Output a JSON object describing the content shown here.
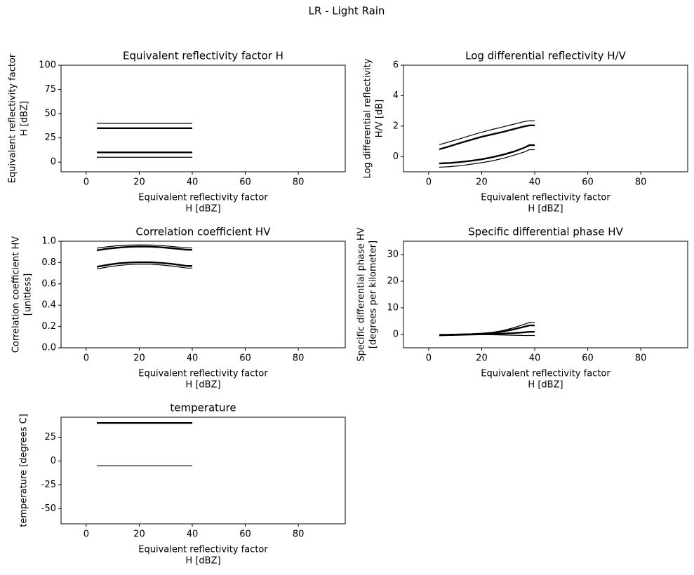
{
  "title": "LR - Light Rain",
  "chart_data": [
    {
      "type": "line",
      "title": "Equivalent reflectivity factor H",
      "xlabel": [
        "Equivalent reflectivity factor",
        "H [dBZ]"
      ],
      "ylabel": [
        "Equivalent reflectivity factor",
        "H [dBZ]"
      ],
      "x": [
        4,
        40
      ],
      "xlim": [
        -9.5,
        97.7
      ],
      "xticks": [
        0,
        20,
        40,
        60,
        80
      ],
      "ylim": [
        -10,
        100
      ],
      "yticks": [
        0,
        25,
        50,
        75,
        100
      ],
      "series": [
        {
          "color": "#000000",
          "width": 1.2,
          "values": [
            40,
            40
          ]
        },
        {
          "color": "#000000",
          "width": 2.4,
          "values": [
            35,
            35
          ]
        },
        {
          "color": "#000000",
          "width": 2.4,
          "values": [
            10,
            10
          ]
        },
        {
          "color": "#000000",
          "width": 1.2,
          "values": [
            5,
            5
          ]
        }
      ]
    },
    {
      "type": "line",
      "title": "Log differential reflectivity H/V",
      "xlabel": [
        "Equivalent reflectivity factor",
        "H [dBZ]"
      ],
      "ylabel": [
        "Log differential reflectivity",
        "H/V [dB]"
      ],
      "x": [
        4,
        8,
        12,
        16,
        20,
        24,
        28,
        32,
        36,
        38,
        40
      ],
      "xlim": [
        -9.5,
        97.7
      ],
      "xticks": [
        0,
        20,
        40,
        60,
        80
      ],
      "ylim": [
        -1,
        6
      ],
      "yticks": [
        0,
        2,
        4,
        6
      ],
      "series": [
        {
          "color": "#000000",
          "width": 1.2,
          "values": [
            0.78,
            0.98,
            1.18,
            1.4,
            1.6,
            1.78,
            1.95,
            2.12,
            2.3,
            2.35,
            2.35
          ]
        },
        {
          "color": "#000000",
          "width": 2.4,
          "values": [
            0.48,
            0.68,
            0.9,
            1.1,
            1.3,
            1.46,
            1.62,
            1.8,
            1.98,
            2.05,
            2.05
          ]
        },
        {
          "color": "#000000",
          "width": 2.4,
          "values": [
            -0.45,
            -0.42,
            -0.36,
            -0.28,
            -0.18,
            -0.04,
            0.12,
            0.32,
            0.58,
            0.75,
            0.75
          ]
        },
        {
          "color": "#000000",
          "width": 1.2,
          "values": [
            -0.7,
            -0.66,
            -0.6,
            -0.5,
            -0.4,
            -0.28,
            -0.12,
            0.08,
            0.3,
            0.45,
            0.45
          ]
        }
      ]
    },
    {
      "type": "line",
      "title": "Correlation coefficient HV",
      "xlabel": [
        "Equivalent reflectivity factor",
        "H [dBZ]"
      ],
      "ylabel": [
        "Correlation coefficient HV",
        "[unitless]"
      ],
      "x": [
        4,
        8,
        12,
        16,
        20,
        24,
        28,
        32,
        36,
        38,
        40
      ],
      "xlim": [
        -9.5,
        97.7
      ],
      "xticks": [
        0,
        20,
        40,
        60,
        80
      ],
      "ylim": [
        0,
        1
      ],
      "yticks": [
        {
          "value": 0,
          "label": "0.0"
        },
        {
          "value": 0.2,
          "label": "0.2"
        },
        {
          "value": 0.4,
          "label": "0.4"
        },
        {
          "value": 0.6,
          "label": "0.6"
        },
        {
          "value": 0.8,
          "label": "0.8"
        },
        {
          "value": 1,
          "label": "1.0"
        }
      ],
      "series": [
        {
          "color": "#000000",
          "width": 1.2,
          "values": [
            0.935,
            0.948,
            0.958,
            0.964,
            0.966,
            0.965,
            0.96,
            0.952,
            0.942,
            0.937,
            0.937
          ]
        },
        {
          "color": "#000000",
          "width": 2.4,
          "values": [
            0.915,
            0.93,
            0.94,
            0.947,
            0.95,
            0.949,
            0.944,
            0.935,
            0.925,
            0.92,
            0.92
          ]
        },
        {
          "color": "#000000",
          "width": 2.4,
          "values": [
            0.76,
            0.778,
            0.792,
            0.8,
            0.803,
            0.802,
            0.797,
            0.788,
            0.775,
            0.768,
            0.768
          ]
        },
        {
          "color": "#000000",
          "width": 1.2,
          "values": [
            0.74,
            0.758,
            0.772,
            0.781,
            0.785,
            0.784,
            0.778,
            0.768,
            0.755,
            0.748,
            0.748
          ]
        }
      ]
    },
    {
      "type": "line",
      "title": "Specific differential phase HV",
      "xlabel": [
        "Equivalent reflectivity factor",
        "H [dBZ]"
      ],
      "ylabel": [
        "Specific differential phase HV",
        "[degrees per kilometer]"
      ],
      "x": [
        4,
        8,
        12,
        16,
        20,
        24,
        28,
        32,
        36,
        38,
        40
      ],
      "xlim": [
        -9.5,
        97.7
      ],
      "xticks": [
        0,
        20,
        40,
        60,
        80
      ],
      "ylim": [
        -5,
        35
      ],
      "yticks": [
        0,
        10,
        20,
        30
      ],
      "series": [
        {
          "color": "#000000",
          "width": 1.2,
          "values": [
            0,
            0,
            0.1,
            0.2,
            0.4,
            0.8,
            1.5,
            2.5,
            3.8,
            4.5,
            4.5
          ]
        },
        {
          "color": "#000000",
          "width": 2.4,
          "values": [
            -0.2,
            -0.1,
            0,
            0.1,
            0.3,
            0.6,
            1.1,
            1.9,
            2.9,
            3.4,
            3.4
          ]
        },
        {
          "color": "#000000",
          "width": 2.4,
          "values": [
            -0.3,
            -0.2,
            -0.1,
            0,
            0.1,
            0.2,
            0.3,
            0.5,
            0.8,
            1,
            1
          ]
        },
        {
          "color": "#000000",
          "width": 1.2,
          "values": [
            -0.4,
            -0.3,
            -0.2,
            -0.1,
            0,
            -0.1,
            -0.2,
            -0.3,
            -0.4,
            -0.4,
            -0.4
          ]
        }
      ]
    },
    {
      "type": "line",
      "title": "temperature",
      "xlabel": [
        "Equivalent reflectivity factor",
        "H [dBZ]"
      ],
      "ylabel": [
        "temperature [degrees C]"
      ],
      "x": [
        4,
        40
      ],
      "xlim": [
        -9.5,
        97.7
      ],
      "xticks": [
        0,
        20,
        40,
        60,
        80
      ],
      "ylim": [
        -66,
        46
      ],
      "yticks": [
        -50,
        -25,
        0,
        25
      ],
      "series": [
        {
          "color": "#000000",
          "width": 2.4,
          "values": [
            40,
            40
          ]
        },
        {
          "color": "#000000",
          "width": 1.2,
          "values": [
            -5,
            -5
          ]
        }
      ]
    }
  ]
}
